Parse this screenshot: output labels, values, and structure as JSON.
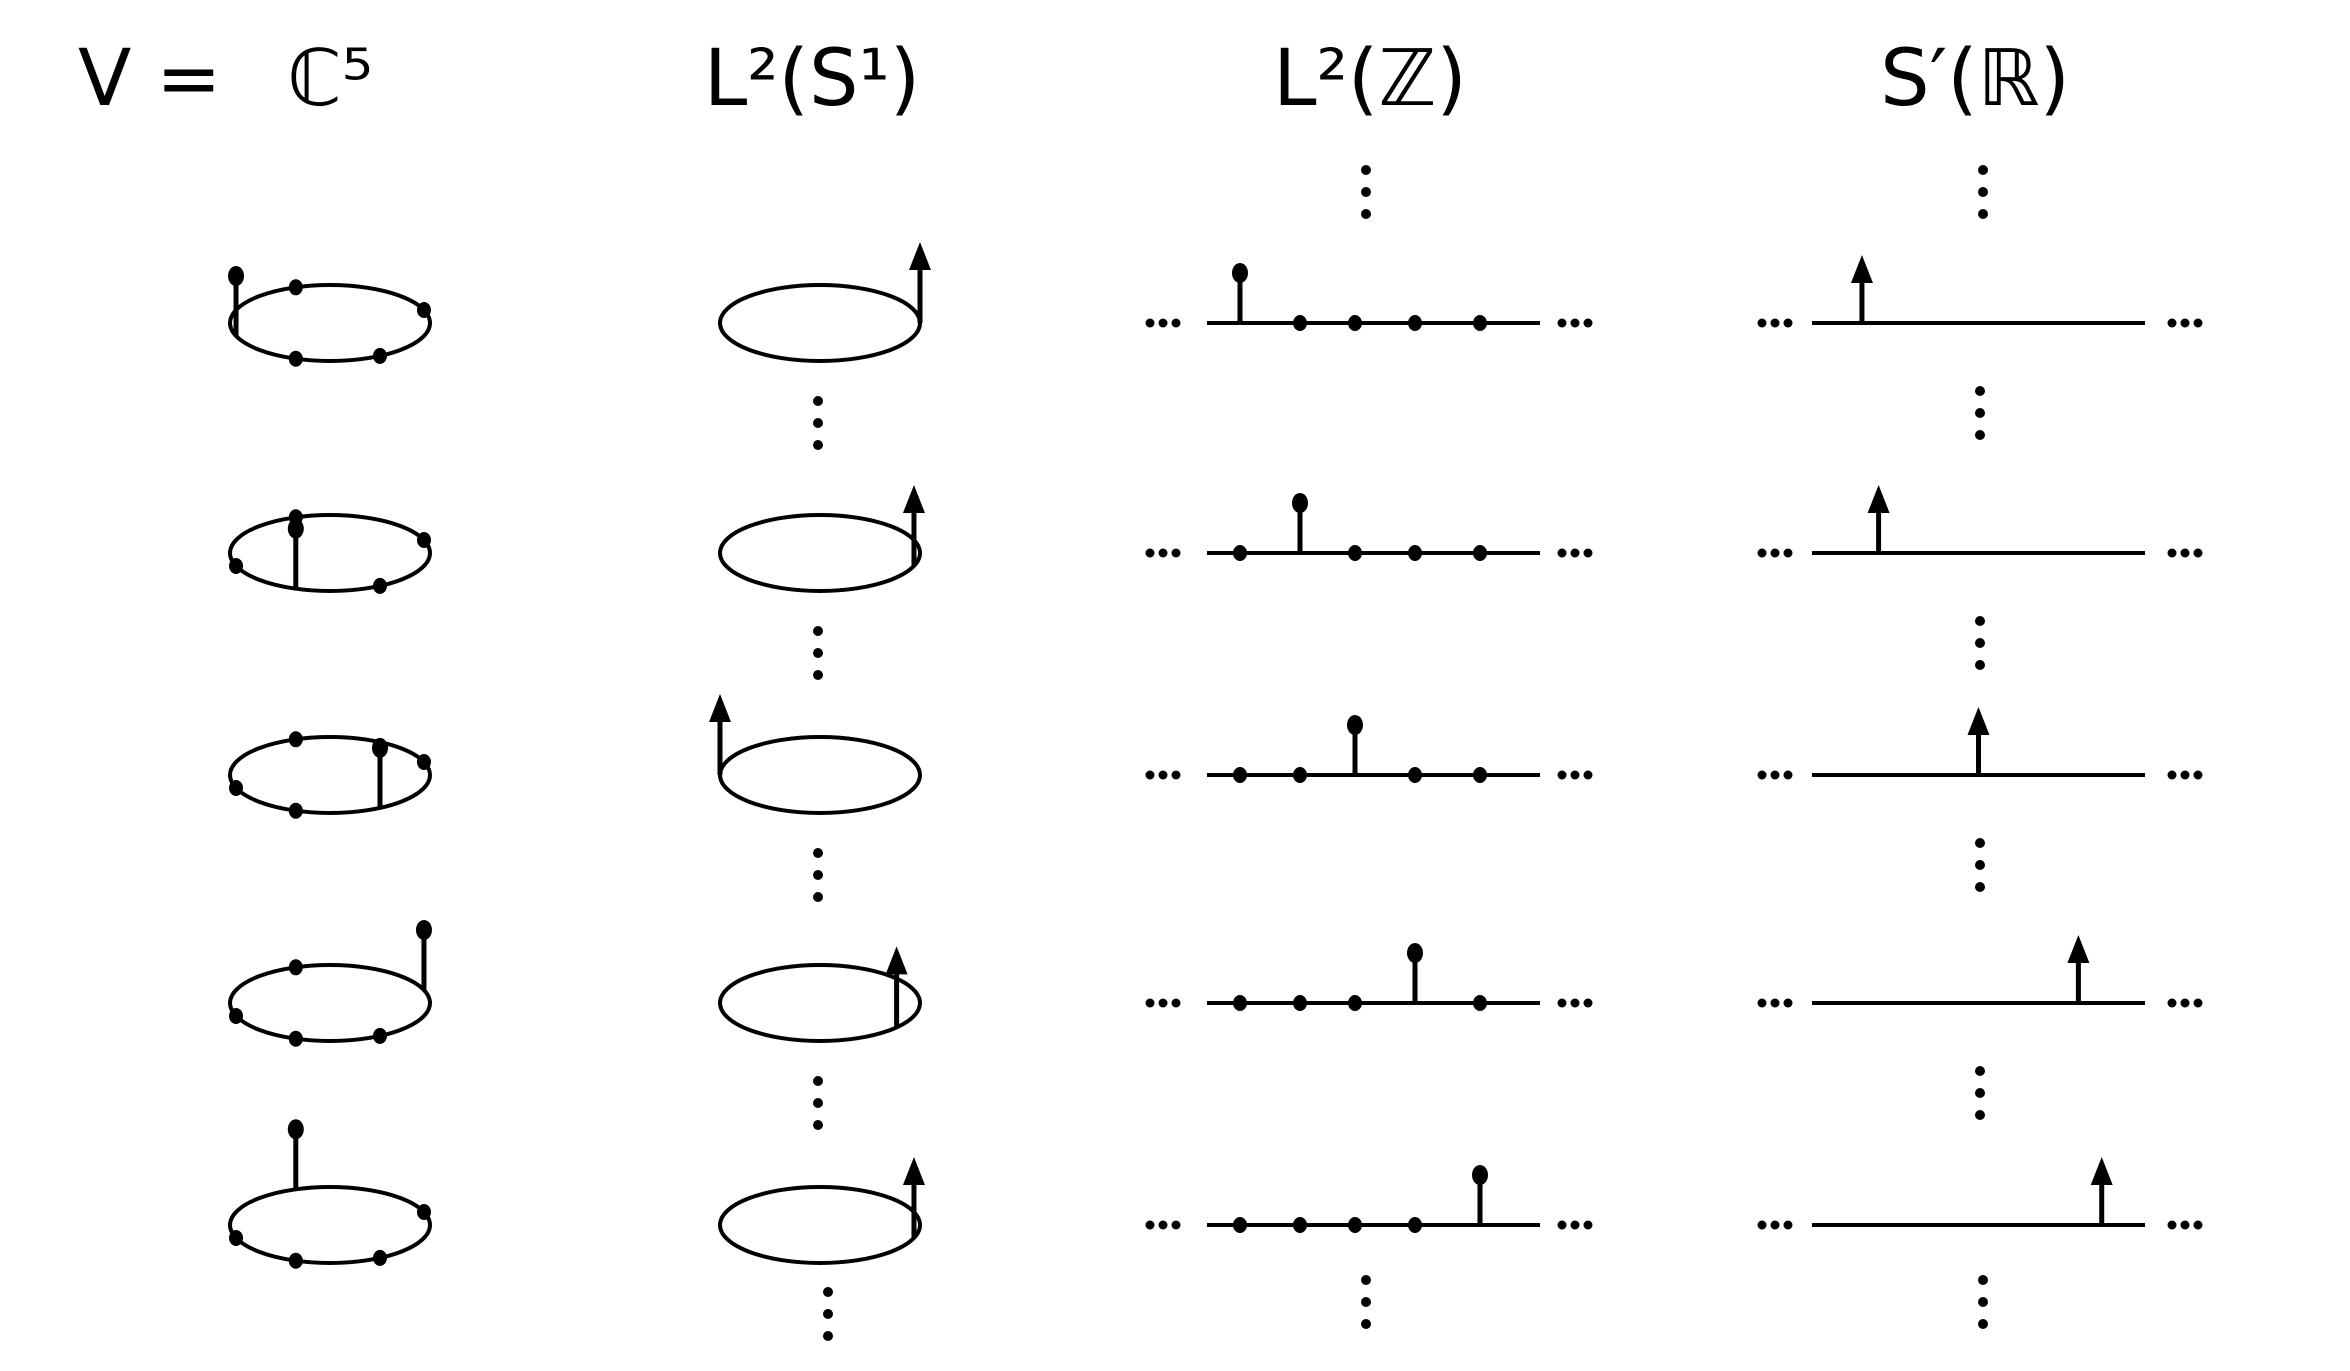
{
  "heading": {
    "v_equals": "V =",
    "columns": [
      {
        "id": "c5",
        "label": "ℂ⁵"
      },
      {
        "id": "l2s1",
        "label": "L²(S¹)"
      },
      {
        "id": "l2z",
        "label": "L²(ℤ)"
      },
      {
        "id": "sprime",
        "label": "S′(ℝ)"
      }
    ]
  },
  "diagram": {
    "rows": 5,
    "c5": {
      "points": 5,
      "spike_index_per_row": [
        0,
        1,
        2,
        3,
        4
      ]
    },
    "l2s1": {
      "spike_position_per_row": [
        "right",
        "right-front",
        "left",
        "front-right",
        "right-front"
      ]
    },
    "l2z": {
      "points": 5,
      "spike_index_per_row": [
        0,
        1,
        2,
        3,
        4
      ]
    },
    "sprime": {
      "spike_fraction_per_row": [
        0.15,
        0.2,
        0.5,
        0.8,
        0.87
      ]
    },
    "ellipsis": "...",
    "vertical_dots": "⋮"
  }
}
